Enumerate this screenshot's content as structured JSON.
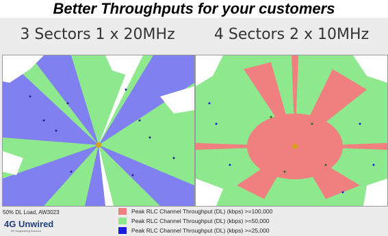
{
  "headline": "Better Throughputs for your customers",
  "panels": [
    {
      "title": "3 Sectors 1 x 20MHz"
    },
    {
      "title": "4 Sectors 2 x 10MHz"
    }
  ],
  "footnote": "50% DL Load, AW3023",
  "logo": {
    "text": "4G Unwired",
    "tagline": "RF Engineering Services"
  },
  "legend": [
    {
      "label": "Peak RLC Channel Throughput (DL) (kbps) >=100,000",
      "color": "#f08080"
    },
    {
      "label": "Peak RLC Channel Throughput (DL) (kbps) >=50,000",
      "color": "#8ee88e"
    },
    {
      "label": "Peak RLC Channel Throughput (DL) (kbps) >=25,000",
      "color": "#1a1ae0"
    }
  ],
  "colors": {
    "high": "#f08080",
    "medium": "#8ee88e",
    "low": "#8080f0",
    "site": "#d4a017",
    "background": "#ececec"
  }
}
